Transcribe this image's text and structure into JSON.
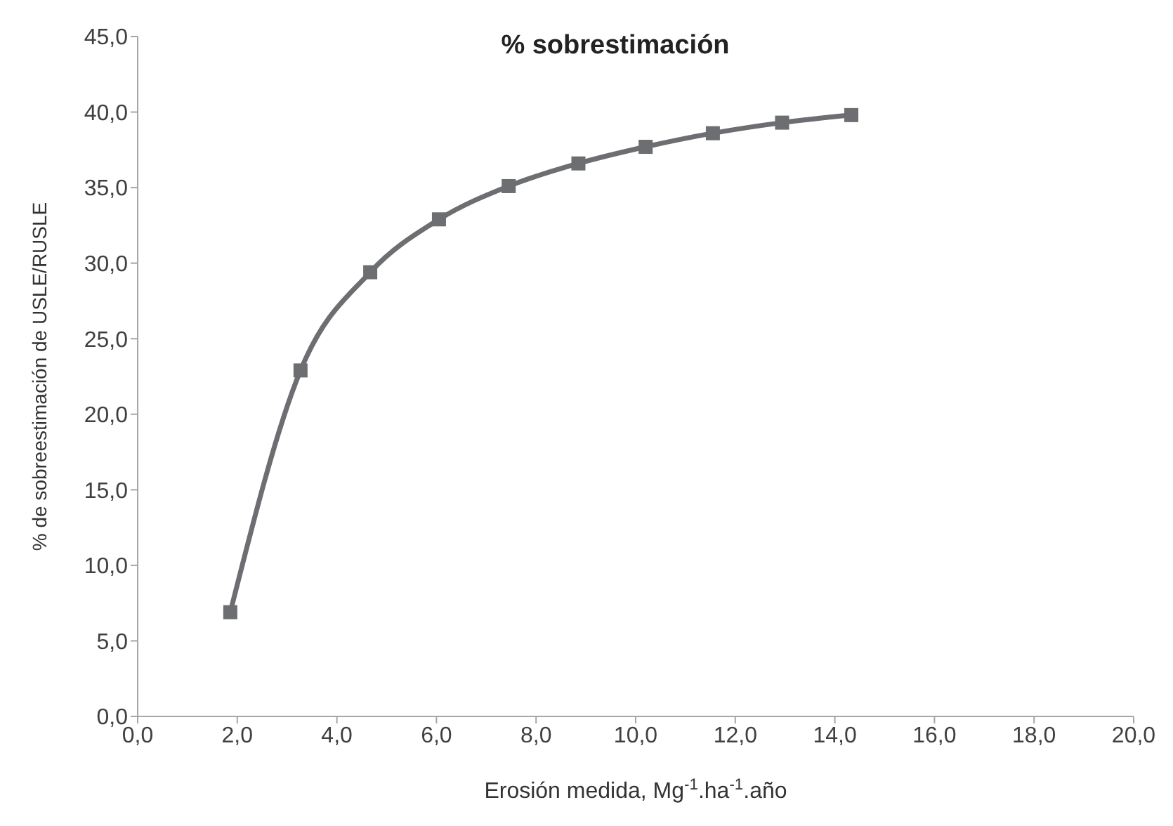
{
  "chart_data": {
    "type": "line",
    "title": "% sobrestimación",
    "xlabel": "Erosión medida, Mg$^{-1}$.ha$^{-1}$.año",
    "ylabel": "% de sobreestimación de USLE/RUSLE",
    "x": [
      1.86,
      3.27,
      4.67,
      6.05,
      7.45,
      8.85,
      10.2,
      11.55,
      12.94,
      14.33
    ],
    "series": [
      {
        "color": "#6d6e71",
        "values": [
          6.9,
          22.9,
          29.4,
          32.9,
          35.1,
          36.6,
          37.7,
          38.6,
          39.3,
          39.8
        ]
      }
    ],
    "xlim": [
      0,
      20
    ],
    "xticks": [
      {
        "value": 0,
        "label": "0,0"
      },
      {
        "value": 2,
        "label": "2,0"
      },
      {
        "value": 4,
        "label": "4,0"
      },
      {
        "value": 6,
        "label": "6,0"
      },
      {
        "value": 8,
        "label": "8,0"
      },
      {
        "value": 10,
        "label": "10,0"
      },
      {
        "value": 12,
        "label": "12,0"
      },
      {
        "value": 14,
        "label": "14,0"
      },
      {
        "value": 16,
        "label": "16,0"
      },
      {
        "value": 18,
        "label": "18,0"
      },
      {
        "value": 20,
        "label": "20,0"
      }
    ],
    "ylim": [
      0,
      45
    ],
    "yticks": [
      {
        "value": 0,
        "label": "0,0"
      },
      {
        "value": 5,
        "label": "5,0"
      },
      {
        "value": 10,
        "label": "10,0"
      },
      {
        "value": 15,
        "label": "15,0"
      },
      {
        "value": 20,
        "label": "20,0"
      },
      {
        "value": 25,
        "label": "25,0"
      },
      {
        "value": 30,
        "label": "30,0"
      },
      {
        "value": 35,
        "label": "35,0"
      },
      {
        "value": 40,
        "label": "40,0"
      },
      {
        "value": 45,
        "label": "45,0"
      }
    ],
    "marker": "square",
    "line_style": "solid",
    "grid": false
  }
}
